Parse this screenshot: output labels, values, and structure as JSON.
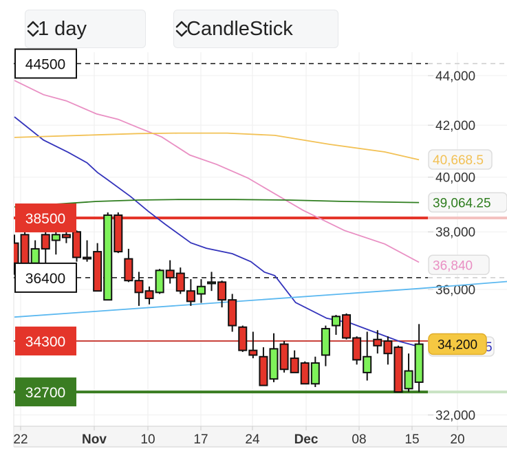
{
  "toolbar": {
    "interval": "1 day",
    "chart_type": "CandleStick"
  },
  "colors": {
    "up": "#7ef25a",
    "down": "#e4352a",
    "ma_pink": "#e98fc3",
    "ma_blue": "#3333bb",
    "ma_yellow": "#f2c155",
    "ma_green": "#2e7d1e",
    "trend_lightblue": "#5bb8f0",
    "level_red": "#e4352a",
    "level_green": "#3a7d22",
    "current_price": "#f5c842"
  },
  "chart_data": {
    "type": "candlestick",
    "title": "",
    "xlabel": "",
    "ylabel": "",
    "yscale": "log",
    "ylim": [
      31800,
      44800
    ],
    "grid": true,
    "y_ticks": [
      "44,000",
      "42,000",
      "40,000",
      "38,000",
      "36,000",
      "32,000"
    ],
    "y_tick_values": [
      44000,
      42000,
      40000,
      38000,
      36000,
      32000
    ],
    "x_ticks": [
      {
        "label": "22",
        "bold": false
      },
      {
        "label": "Nov",
        "bold": true
      },
      {
        "label": "10",
        "bold": false
      },
      {
        "label": "17",
        "bold": false
      },
      {
        "label": "24",
        "bold": false
      },
      {
        "label": "Dec",
        "bold": true
      },
      {
        "label": "08",
        "bold": false
      },
      {
        "label": "15",
        "bold": false
      },
      {
        "label": "20",
        "bold": false
      }
    ],
    "candles": [
      [
        37600,
        37900,
        36500,
        36900
      ],
      [
        37900,
        38000,
        36500,
        36800
      ],
      [
        36900,
        37700,
        36700,
        37400
      ],
      [
        37900,
        38000,
        36900,
        37400
      ],
      [
        37700,
        38050,
        37200,
        37900
      ],
      [
        37900,
        38000,
        37600,
        37800
      ],
      [
        38000,
        38050,
        36950,
        37100
      ],
      [
        37100,
        37700,
        36950,
        37050
      ],
      [
        37300,
        37600,
        35950,
        35950
      ],
      [
        35650,
        38700,
        35650,
        38600
      ],
      [
        38600,
        38700,
        37250,
        37300
      ],
      [
        37050,
        37400,
        36250,
        36300
      ],
      [
        36300,
        36600,
        35450,
        35900
      ],
      [
        35950,
        36100,
        35500,
        35700
      ],
      [
        35900,
        36700,
        35850,
        36650
      ],
      [
        36650,
        37000,
        36200,
        36400
      ],
      [
        36550,
        36750,
        35850,
        35950
      ],
      [
        35950,
        36350,
        35450,
        35600
      ],
      [
        35850,
        36350,
        35550,
        36100
      ],
      [
        36200,
        36600,
        35950,
        36250
      ],
      [
        36250,
        36300,
        35400,
        35650
      ],
      [
        35650,
        35850,
        34600,
        34800
      ],
      [
        34750,
        34800,
        33950,
        34000
      ],
      [
        34000,
        34600,
        33750,
        33850
      ],
      [
        33800,
        34100,
        32900,
        32900
      ],
      [
        33100,
        34550,
        33000,
        34050
      ],
      [
        34200,
        34300,
        33300,
        33400
      ],
      [
        33750,
        34000,
        33300,
        33300
      ],
      [
        33600,
        33650,
        32950,
        32950
      ],
      [
        32950,
        33800,
        32850,
        33600
      ],
      [
        33850,
        34800,
        33500,
        34700
      ],
      [
        34800,
        35150,
        34500,
        35100
      ],
      [
        35150,
        35200,
        34350,
        34400
      ],
      [
        34400,
        34450,
        33550,
        33700
      ],
      [
        33300,
        34600,
        33050,
        33800
      ],
      [
        34350,
        34650,
        33900,
        34150
      ],
      [
        34300,
        34450,
        33550,
        33900
      ],
      [
        34100,
        34150,
        32700,
        32700
      ],
      [
        32800,
        33900,
        32700,
        33350
      ],
      [
        33000,
        34850,
        32700,
        34200
      ]
    ],
    "candle_fields": [
      "open",
      "high",
      "low",
      "close"
    ],
    "series": [
      {
        "name": "MA pink",
        "color_key": "ma_pink",
        "label": "36,840",
        "points": [
          [
            0,
            43800
          ],
          [
            2.8,
            43220
          ],
          [
            5,
            42970
          ],
          [
            7.9,
            42450
          ],
          [
            10,
            42230
          ],
          [
            11.9,
            41910
          ],
          [
            14.2,
            41540
          ],
          [
            16.9,
            40840
          ],
          [
            19.5,
            40480
          ],
          [
            22.5,
            39970
          ],
          [
            27.8,
            38780
          ],
          [
            31.8,
            38050
          ],
          [
            35.7,
            37570
          ],
          [
            39,
            36930
          ]
        ]
      },
      {
        "name": "MA blue",
        "color_key": "ma_blue",
        "label": "5",
        "points": [
          [
            0,
            42330
          ],
          [
            2.8,
            41420
          ],
          [
            5.2,
            40940
          ],
          [
            7,
            40540
          ],
          [
            8,
            40180
          ],
          [
            9,
            39900
          ],
          [
            11.2,
            39280
          ],
          [
            12.9,
            38740
          ],
          [
            14.5,
            38280
          ],
          [
            17,
            37610
          ],
          [
            18.5,
            37420
          ],
          [
            21,
            37230
          ],
          [
            22.8,
            36950
          ],
          [
            24.1,
            36590
          ],
          [
            25.1,
            36470
          ],
          [
            27.1,
            35560
          ],
          [
            30.1,
            35040
          ],
          [
            32.4,
            34880
          ],
          [
            34.7,
            34590
          ],
          [
            37.1,
            34290
          ],
          [
            39,
            34120
          ]
        ]
      },
      {
        "name": "MA yellow",
        "color_key": "ma_yellow",
        "label": "40,668.5",
        "points": [
          [
            0,
            41520
          ],
          [
            7.9,
            41620
          ],
          [
            11.9,
            41670
          ],
          [
            15.8,
            41690
          ],
          [
            20.5,
            41690
          ],
          [
            25.1,
            41600
          ],
          [
            30.4,
            41250
          ],
          [
            35.7,
            40960
          ],
          [
            39,
            40660
          ]
        ]
      },
      {
        "name": "MA green",
        "color_key": "ma_green",
        "label": "39,064.25",
        "points": [
          [
            0,
            38900
          ],
          [
            7.9,
            39100
          ],
          [
            11.9,
            39150
          ],
          [
            15.8,
            39170
          ],
          [
            21.2,
            39170
          ],
          [
            26.5,
            39150
          ],
          [
            31.8,
            39100
          ],
          [
            39,
            39060
          ]
        ]
      },
      {
        "name": "Trend light blue",
        "color_key": "trend_lightblue",
        "label": "",
        "points": [
          [
            0,
            35080
          ],
          [
            39,
            36030
          ],
          [
            47.5,
            36270
          ]
        ]
      }
    ],
    "levels": [
      {
        "value": 44500,
        "label": "44500",
        "style": "dashed"
      },
      {
        "value": 38500,
        "label": "38500",
        "style": "red-thick"
      },
      {
        "value": 36400,
        "label": "36400",
        "style": "dashed"
      },
      {
        "value": 34300,
        "label": "34300",
        "style": "red-thin"
      },
      {
        "value": 32700,
        "label": "32700",
        "style": "green-thick"
      }
    ],
    "current_price": {
      "value": 34200,
      "label": "34,200"
    }
  }
}
